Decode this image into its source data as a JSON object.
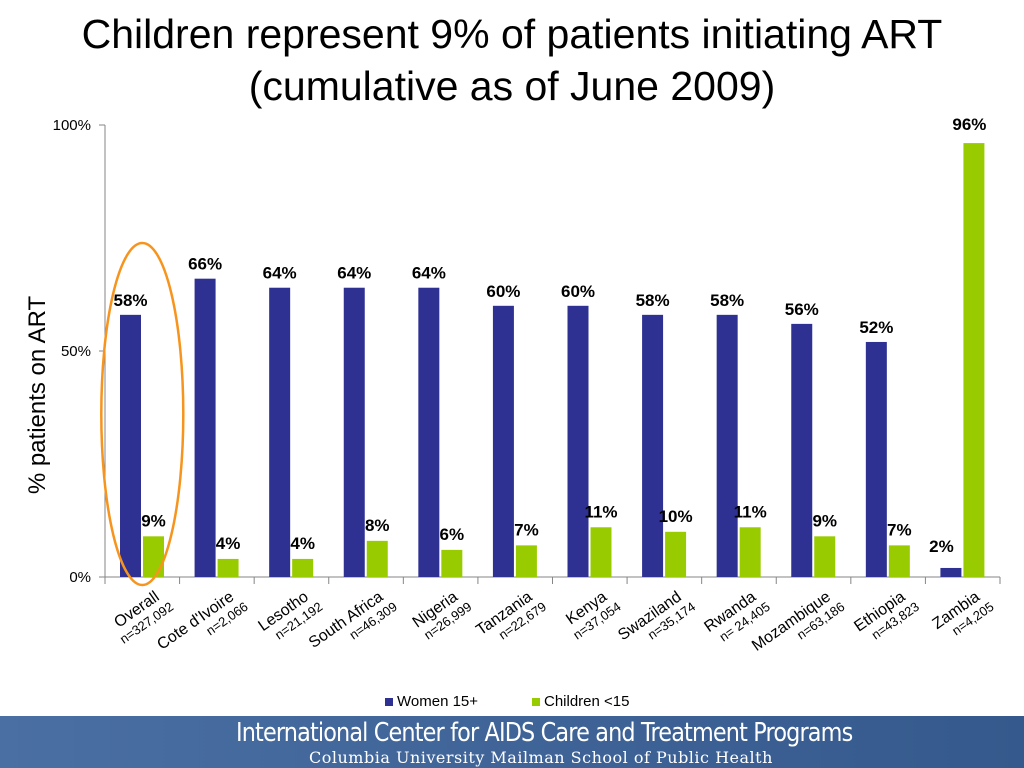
{
  "title_line1": "Children represent 9% of patients initiating ART",
  "title_line2": "(cumulative as of June 2009)",
  "chart_data": {
    "type": "bar",
    "ylabel": "% patients on ART",
    "ylim": [
      0,
      100
    ],
    "yticks": [
      "0%",
      "50%",
      "100%"
    ],
    "categories": [
      {
        "name": "Overall",
        "n": "n=327,092"
      },
      {
        "name": "Cote d'Ivoire",
        "n": "n=2,066"
      },
      {
        "name": "Lesotho",
        "n": "n=21,192"
      },
      {
        "name": "South Africa",
        "n": "n=46,309"
      },
      {
        "name": "Nigeria",
        "n": "n=26,999"
      },
      {
        "name": "Tanzania",
        "n": "n=22,679"
      },
      {
        "name": "Kenya",
        "n": "n=37,054"
      },
      {
        "name": "Swaziland",
        "n": "n=35,174"
      },
      {
        "name": "Rwanda",
        "n": "n= 24,405"
      },
      {
        "name": "Mozambique",
        "n": "n=63,186"
      },
      {
        "name": "Ethiopia",
        "n": "n=43,823"
      },
      {
        "name": "Zambia",
        "n": "n=4,205"
      }
    ],
    "series": [
      {
        "name": "Women 15+",
        "color": "#2e3192",
        "values": [
          58,
          66,
          64,
          64,
          64,
          60,
          60,
          58,
          58,
          56,
          52,
          2
        ],
        "labels": [
          "58%",
          "66%",
          "64%",
          "64%",
          "64%",
          "60%",
          "60%",
          "58%",
          "58%",
          "56%",
          "52%",
          "2%"
        ]
      },
      {
        "name": "Children <15",
        "color": "#99cc00",
        "values": [
          9,
          4,
          4,
          8,
          6,
          7,
          11,
          10,
          11,
          9,
          7,
          96
        ],
        "labels": [
          "9%",
          "4%",
          "4%",
          "8%",
          "6%",
          "7%",
          "11%",
          "10%",
          "11%",
          "9%",
          "7%",
          "96%"
        ]
      }
    ],
    "legend_position": "bottom",
    "highlight_category": "Overall",
    "highlight_color": "#f7941d"
  },
  "footer": {
    "line1": "International Center for AIDS Care and Treatment Programs",
    "line2": "Columbia University Mailman School of Public Health"
  }
}
